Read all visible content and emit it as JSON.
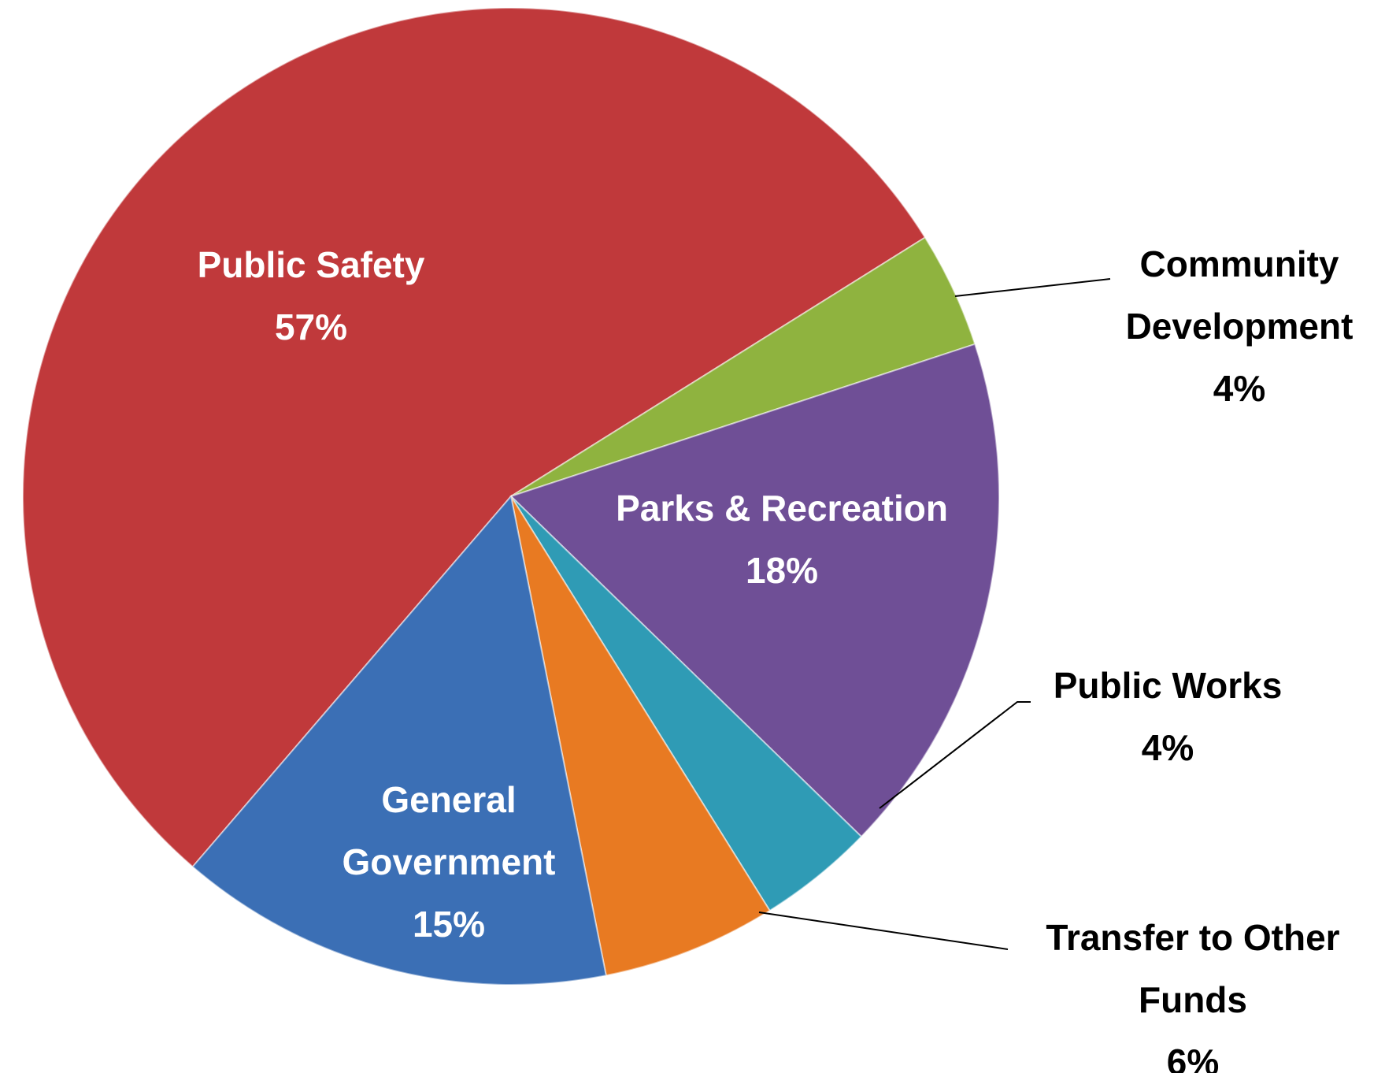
{
  "chart_data": {
    "type": "pie",
    "categories": [
      "Public Safety",
      "Community Development",
      "Parks & Recreation",
      "Public Works",
      "Transfer to Other Funds",
      "General Government"
    ],
    "values": [
      57,
      4,
      18,
      4,
      6,
      15
    ],
    "value_labels": [
      "57%",
      "4%",
      "18%",
      "4%",
      "6%",
      "15%"
    ],
    "colors": [
      "#c0393b",
      "#8fb33f",
      "#6f4f96",
      "#2f9bb5",
      "#e87a22",
      "#3b6fb5"
    ]
  }
}
